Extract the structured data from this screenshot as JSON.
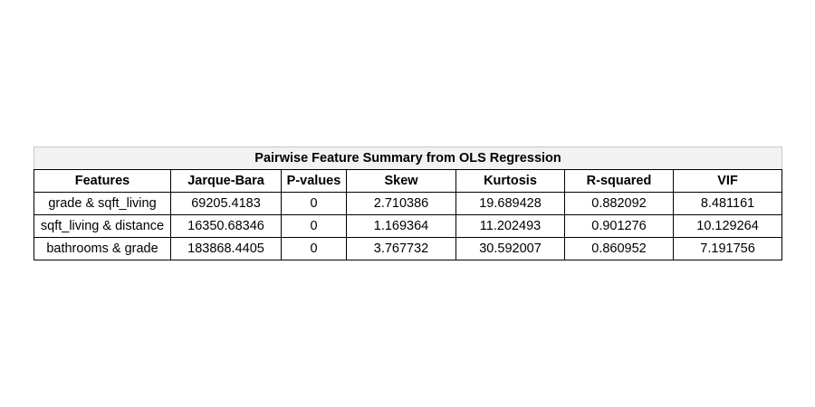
{
  "table": {
    "title": "Pairwise Feature Summary from OLS Regression",
    "columns": [
      "Features",
      "Jarque-Bara",
      "P-values",
      "Skew",
      "Kurtosis",
      "R-squared",
      "VIF"
    ],
    "rows": [
      [
        "grade & sqft_living",
        "69205.4183",
        "0",
        "2.710386",
        "19.689428",
        "0.882092",
        "8.481161"
      ],
      [
        "sqft_living & distance",
        "16350.68346",
        "0",
        "1.169364",
        "11.202493",
        "0.901276",
        "10.129264"
      ],
      [
        "bathrooms & grade",
        "183868.4405",
        "0",
        "3.767732",
        "30.592007",
        "0.860952",
        "7.191756"
      ]
    ]
  }
}
